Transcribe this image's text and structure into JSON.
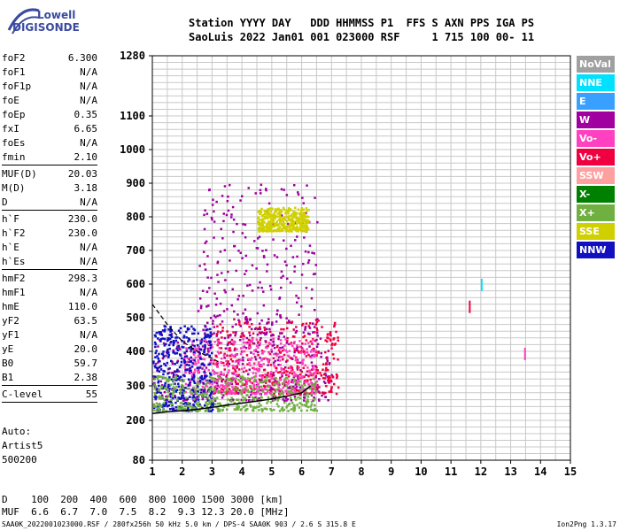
{
  "logo": {
    "line1": "Lowell",
    "line2": "DIGISONDE"
  },
  "header": {
    "line1": "Station YYYY DAY   DDD HHMMSS P1  FFS S AXN PPS IGA PS",
    "line2": "SaoLuis 2022 Jan01 001 023000 RSF     1 715 100 00- 11"
  },
  "params": [
    {
      "label": "foF2",
      "value": "6.300"
    },
    {
      "label": "foF1",
      "value": "N/A"
    },
    {
      "label": "foF1p",
      "value": "N/A"
    },
    {
      "label": "foE",
      "value": "N/A"
    },
    {
      "label": "foEp",
      "value": "0.35"
    },
    {
      "label": "fxI",
      "value": "6.65"
    },
    {
      "label": "foEs",
      "value": "N/A"
    },
    {
      "label": "fmin",
      "value": "2.10"
    },
    {
      "sep": true
    },
    {
      "label": "MUF(D)",
      "value": "20.03"
    },
    {
      "label": "M(D)",
      "value": "3.18"
    },
    {
      "label": "D",
      "value": "N/A"
    },
    {
      "sep": true
    },
    {
      "label": "h`F",
      "value": "230.0"
    },
    {
      "label": "h`F2",
      "value": "230.0"
    },
    {
      "label": "h`E",
      "value": "N/A"
    },
    {
      "label": "h`Es",
      "value": "N/A"
    },
    {
      "sep": true
    },
    {
      "label": "hmF2",
      "value": "298.3"
    },
    {
      "label": "hmF1",
      "value": "N/A"
    },
    {
      "label": "hmE",
      "value": "110.0"
    },
    {
      "label": "yF2",
      "value": "63.5"
    },
    {
      "label": "yF1",
      "value": "N/A"
    },
    {
      "label": "yE",
      "value": "20.0"
    },
    {
      "label": "B0",
      "value": "59.7"
    },
    {
      "label": "B1",
      "value": "2.38"
    },
    {
      "sep": true
    },
    {
      "label": "C-level",
      "value": "55"
    },
    {
      "sep": true
    }
  ],
  "auto": {
    "line1": "Auto:",
    "line2": "Artist5",
    "line3": "500200"
  },
  "legend": [
    {
      "label": "NoVal",
      "color": "#a0a0a0"
    },
    {
      "label": "NNE",
      "color": "#00e0ff"
    },
    {
      "label": "E",
      "color": "#3aa0ff"
    },
    {
      "label": "W",
      "color": "#a000a0"
    },
    {
      "label": "Vo-",
      "color": "#ff40c0"
    },
    {
      "label": "Vo+",
      "color": "#f00040"
    },
    {
      "label": "SSW",
      "color": "#ffa0a0"
    },
    {
      "label": "X-",
      "color": "#008000"
    },
    {
      "label": "X+",
      "color": "#70b040"
    },
    {
      "label": "SSE",
      "color": "#d0d000"
    },
    {
      "label": "NNW",
      "color": "#1010c0"
    }
  ],
  "bottom": {
    "line1": "D    100  200  400  600  800 1000 1500 3000 [km]",
    "line2": "MUF  6.6  6.7  7.0  7.5  8.2  9.3 12.3 20.0 [MHz]"
  },
  "footer": {
    "left": "SAA0K_2022001023000.RSF / 280fx256h 50 kHz 5.0 km / DPS-4 SAA0K 903 / 2.6 S 315.8 E",
    "right": "Ion2Png 1.3.17"
  },
  "chart_data": {
    "type": "scatter",
    "title": "",
    "xlabel": "",
    "ylabel": "",
    "xlim": [
      1,
      15
    ],
    "ylim": [
      80,
      1280
    ],
    "y_scale": "reciprocal-like (non-linear height axis)",
    "x_ticks": [
      "1",
      "2",
      "3",
      "4",
      "5",
      "6",
      "7",
      "8",
      "9",
      "10",
      "11",
      "12",
      "13",
      "14",
      "15"
    ],
    "y_ticks": [
      "80",
      "200",
      "300",
      "400",
      "500",
      "600",
      "700",
      "800",
      "900",
      "1000",
      "1100",
      "1280"
    ],
    "y_tick_values": [
      80,
      200,
      300,
      400,
      500,
      600,
      700,
      800,
      900,
      1000,
      1100,
      1280
    ],
    "grid": true,
    "trace_h": {
      "description": "lower O-trace (virtual height)",
      "x": [
        1.0,
        1.5,
        2.0,
        2.5,
        3.0,
        3.5,
        4.0,
        4.5,
        5.0,
        5.5,
        6.0,
        6.3
      ],
      "y": [
        220,
        225,
        228,
        232,
        238,
        244,
        250,
        256,
        262,
        270,
        280,
        300
      ]
    },
    "trace_profile": {
      "description": "dashed profile curve",
      "x": [
        1.0,
        1.5,
        2.0,
        2.5,
        3.0,
        3.2
      ],
      "y": [
        540,
        480,
        430,
        400,
        380,
        370
      ]
    },
    "echo_regions": [
      {
        "color": "W",
        "x": [
          1.0,
          7.0
        ],
        "y": [
          260,
          460
        ]
      },
      {
        "color": "Vo+",
        "x": [
          3.0,
          7.2
        ],
        "y": [
          280,
          500
        ]
      },
      {
        "color": "Vo-",
        "x": [
          2.0,
          6.5
        ],
        "y": [
          280,
          440
        ]
      },
      {
        "color": "NNW",
        "x": [
          1.0,
          3.0
        ],
        "y": [
          230,
          480
        ]
      },
      {
        "color": "W",
        "x": [
          2.5,
          6.5
        ],
        "y": [
          450,
          900
        ]
      },
      {
        "color": "SSE",
        "x": [
          4.5,
          6.2
        ],
        "y": [
          760,
          830
        ]
      },
      {
        "color": "X+",
        "x": [
          1.0,
          6.5
        ],
        "y": [
          230,
          330
        ]
      }
    ],
    "isolated_points": [
      {
        "x": 12.0,
        "y": 600,
        "color": "NNE"
      },
      {
        "x": 11.6,
        "y": 535,
        "color": "Vo+"
      },
      {
        "x": 13.45,
        "y": 395,
        "color": "Vo-"
      }
    ]
  }
}
